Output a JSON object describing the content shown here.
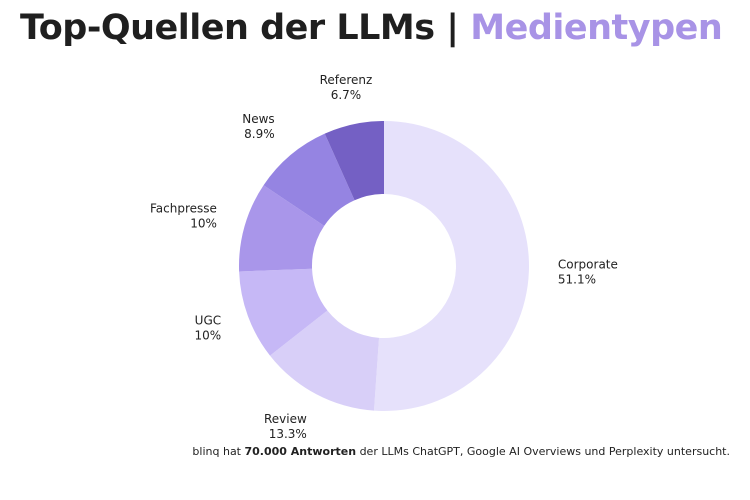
{
  "chart_data": {
    "type": "pie",
    "variant": "donut",
    "title_main": "Top-Quellen der LLMs |",
    "title_accent": "Medientypen",
    "legend": "none",
    "categories": [
      "Corporate",
      "Review",
      "UGC",
      "Fachpresse",
      "News",
      "Referenz"
    ],
    "values": [
      51.1,
      13.3,
      10,
      10,
      8.9,
      6.7
    ],
    "value_labels": [
      "51.1%",
      "13.3%",
      "10%",
      "10%",
      "8.9%",
      "6.7%"
    ],
    "colors": [
      "#e6e1fb",
      "#d8cff8",
      "#c6b8f6",
      "#a996ea",
      "#9584e2",
      "#7460c4"
    ],
    "accent_color": "#a893e6"
  },
  "footnote": {
    "prefix": "blinq hat ",
    "bold": "70.000 Antworten",
    "suffix": " der LLMs ChatGPT, Google AI Overviews und Perplexity untersucht."
  }
}
